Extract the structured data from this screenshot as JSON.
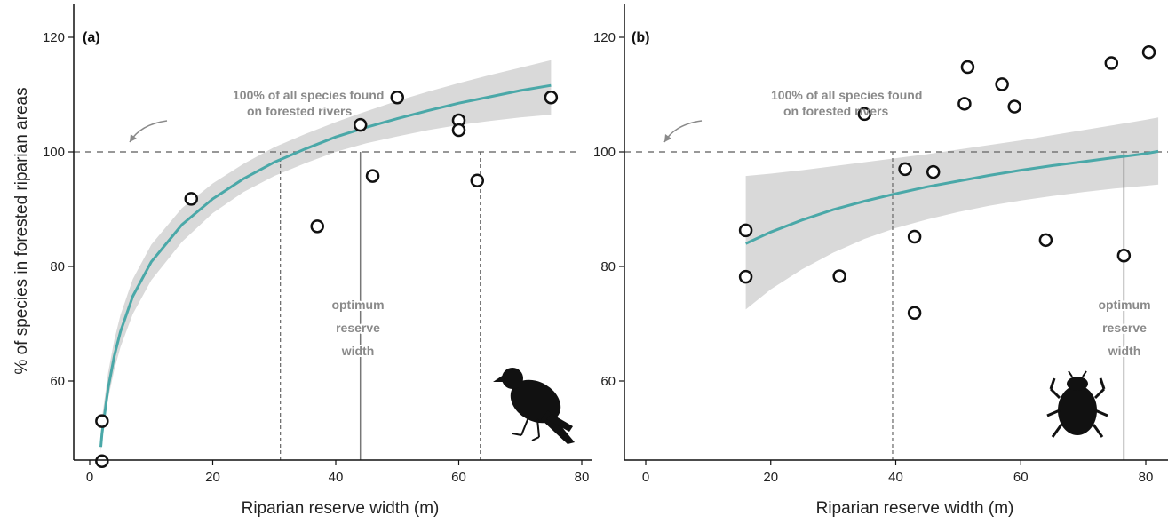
{
  "chart_data": [
    {
      "type": "scatter",
      "panel_label": "(a)",
      "title": "",
      "xlabel": "Riparian reserve width (m)",
      "ylabel": "% of species in forested riparian areas",
      "xlim": [
        -3,
        82
      ],
      "ylim": [
        46,
        125
      ],
      "xticks": [
        0,
        20,
        40,
        60,
        80
      ],
      "yticks": [
        60,
        80,
        100,
        120
      ],
      "grid": false,
      "points": [
        {
          "x": 2,
          "y": 53
        },
        {
          "x": 2,
          "y": 46
        },
        {
          "x": 16.5,
          "y": 91.8
        },
        {
          "x": 37,
          "y": 87
        },
        {
          "x": 44,
          "y": 104.7
        },
        {
          "x": 46,
          "y": 95.8
        },
        {
          "x": 50,
          "y": 109.5
        },
        {
          "x": 60,
          "y": 105.5
        },
        {
          "x": 60,
          "y": 103.8
        },
        {
          "x": 63,
          "y": 95
        },
        {
          "x": 75,
          "y": 109.5
        }
      ],
      "fit": {
        "x": [
          1.8,
          2,
          3,
          4,
          5,
          7,
          10,
          15,
          20,
          25,
          30,
          35,
          40,
          45,
          50,
          55,
          60,
          65,
          70,
          75
        ],
        "y": [
          48.5,
          50.8,
          58.8,
          64.4,
          68.6,
          74.8,
          80.8,
          87.3,
          91.8,
          95.3,
          98.2,
          100.5,
          102.6,
          104.3,
          105.8,
          107.2,
          108.5,
          109.6,
          110.7,
          111.6
        ],
        "lower": [
          47.5,
          49.8,
          57,
          62,
          65.9,
          71.7,
          77.6,
          84.3,
          89.3,
          93,
          95.8,
          98,
          100,
          101.5,
          102.7,
          103.8,
          104.7,
          105.4,
          106,
          106.5
        ],
        "upper": [
          51,
          53.5,
          61.5,
          67.2,
          71.5,
          77.8,
          83.8,
          90.2,
          94.5,
          97.9,
          100.8,
          103.1,
          105.2,
          107.1,
          108.9,
          110.5,
          112,
          113.4,
          114.7,
          116
        ]
      },
      "reference_line": {
        "y": 100
      },
      "optimum_lines": {
        "optimum": 44,
        "lower": 31,
        "upper": 63.5
      },
      "annotations": {
        "reference_text": [
          "100% of all species found",
          "on forested rivers"
        ],
        "optimum_text": [
          "optimum",
          "reserve",
          "width"
        ]
      },
      "silhouette": "bird"
    },
    {
      "type": "scatter",
      "panel_label": "(b)",
      "title": "",
      "xlabel": "Riparian reserve width (m)",
      "ylabel": "",
      "xlim": [
        -3,
        82
      ],
      "ylim": [
        46,
        125
      ],
      "xticks": [
        0,
        20,
        40,
        60,
        80
      ],
      "yticks": [
        60,
        80,
        100,
        120
      ],
      "grid": false,
      "points": [
        {
          "x": 16,
          "y": 86.3
        },
        {
          "x": 16,
          "y": 78.2
        },
        {
          "x": 31,
          "y": 78.3
        },
        {
          "x": 35,
          "y": 106.6
        },
        {
          "x": 41.5,
          "y": 97
        },
        {
          "x": 43,
          "y": 85.2
        },
        {
          "x": 43,
          "y": 71.9
        },
        {
          "x": 46,
          "y": 96.5
        },
        {
          "x": 51,
          "y": 108.4
        },
        {
          "x": 51.5,
          "y": 114.8
        },
        {
          "x": 57,
          "y": 111.8
        },
        {
          "x": 59,
          "y": 107.9
        },
        {
          "x": 64,
          "y": 84.6
        },
        {
          "x": 74.5,
          "y": 115.5
        },
        {
          "x": 76.5,
          "y": 81.9
        },
        {
          "x": 80.5,
          "y": 117.4
        }
      ],
      "fit": {
        "x": [
          16,
          20,
          25,
          30,
          35,
          40,
          45,
          50,
          55,
          60,
          65,
          70,
          75,
          80,
          82
        ],
        "y": [
          84,
          86,
          88.1,
          89.9,
          91.4,
          92.7,
          93.9,
          94.9,
          95.9,
          96.8,
          97.6,
          98.3,
          99,
          99.7,
          100.1
        ],
        "lower": [
          72.5,
          76,
          79.5,
          82.4,
          84.8,
          86.7,
          88.2,
          89.5,
          90.6,
          91.5,
          92.3,
          93,
          93.6,
          94.1,
          94.3
        ],
        "upper": [
          95.8,
          96.2,
          96.8,
          97.5,
          98.2,
          98.9,
          99.6,
          100.4,
          101.2,
          102,
          102.9,
          103.8,
          104.7,
          105.6,
          106
        ]
      },
      "reference_line": {
        "y": 100
      },
      "optimum_lines": {
        "optimum": 76.5,
        "lower": 39.5
      },
      "annotations": {
        "reference_text": [
          "100% of all species found",
          "on forested rivers"
        ],
        "optimum_text": [
          "optimum",
          "reserve",
          "width"
        ]
      },
      "silhouette": "beetle"
    }
  ],
  "colors": {
    "fit_line": "#4aa8a8",
    "confidence_band": "#d9d9d9",
    "reference_line": "#777777",
    "points_stroke": "#111111",
    "annotation_text": "#8a8a8a"
  },
  "icons": {
    "panel_a": "bird-silhouette-icon",
    "panel_b": "beetle-silhouette-icon"
  }
}
